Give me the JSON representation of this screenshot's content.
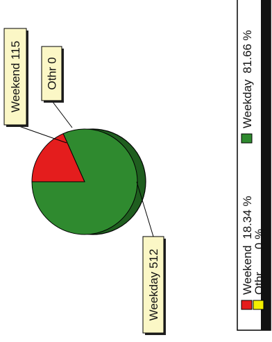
{
  "chart_data": {
    "type": "pie",
    "title": "",
    "orientation": "rotated 90 degrees counter-clockwise",
    "categories": [
      "Weekday",
      "Weekend",
      "Othr"
    ],
    "values": [
      512,
      115,
      0
    ],
    "percentages": [
      81.66,
      18.34,
      0
    ],
    "colors": [
      "#2f8a2f",
      "#e41d1d",
      "#f4ee00"
    ],
    "data_labels": [
      "Weekday 512",
      "Weekend 115",
      "Othr 0"
    ],
    "legend": {
      "placement": "right",
      "entries": [
        {
          "name": "Weekend",
          "percent_text": "18.34 %",
          "color": "#e41d1d"
        },
        {
          "name": "Othr",
          "percent_text": "0 %",
          "color": "#f4ee00"
        },
        {
          "name": "Weekday",
          "percent_text": "81.66 %",
          "color": "#2f8a2f"
        }
      ]
    },
    "style": {
      "label_box_color": "#fbf7c6",
      "shadow_color": "#1f5e1f"
    }
  }
}
